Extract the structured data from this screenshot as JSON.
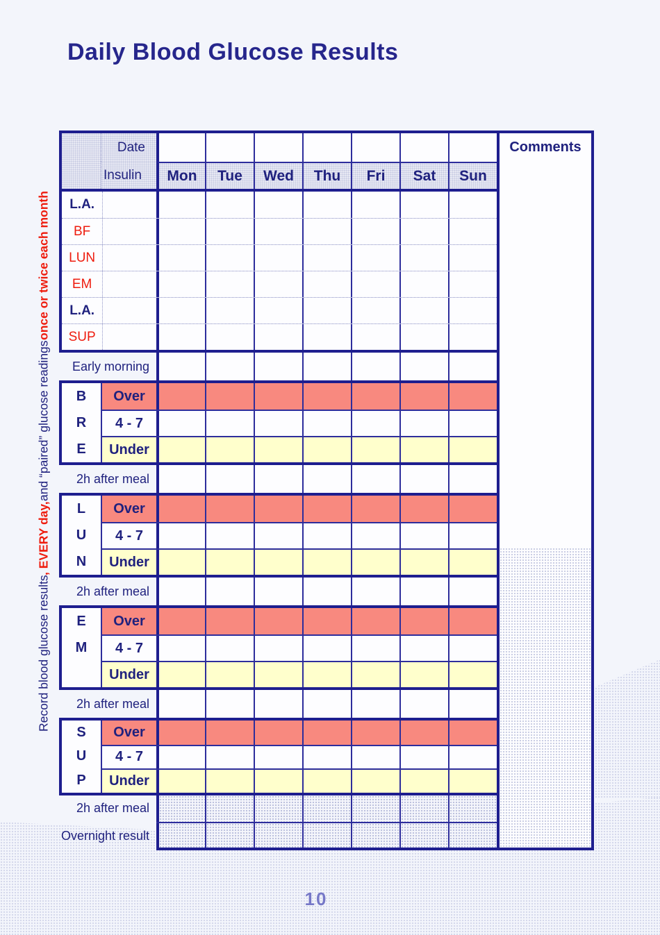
{
  "page": {
    "title": "Daily Blood Glucose Results",
    "page_number": "10",
    "side_note": {
      "seg1": "Record blood glucose results ",
      "seg2": ", EVERY day, ",
      "seg3": "and “paired” glucose readings ",
      "seg4": "once or twice each month"
    }
  },
  "table": {
    "header": {
      "date_label": "Date",
      "insulin_label": "Insulin",
      "days": [
        "Mon",
        "Tue",
        "Wed",
        "Thu",
        "Fri",
        "Sat",
        "Sun"
      ],
      "comments_label": "Comments"
    },
    "insulin_rows": [
      {
        "label": "L.A.",
        "color": "navy"
      },
      {
        "label": "BF",
        "color": "red"
      },
      {
        "label": "LUN",
        "color": "red"
      },
      {
        "label": "EM",
        "color": "red"
      },
      {
        "label": "L.A.",
        "color": "navy"
      },
      {
        "label": "SUP",
        "color": "red"
      }
    ],
    "early_label": "Early morning",
    "sections": [
      {
        "letters": [
          "B",
          "R",
          "E"
        ],
        "rows": [
          "Over",
          "4 - 7",
          "Under"
        ],
        "after_label": "2h after meal"
      },
      {
        "letters": [
          "L",
          "U",
          "N"
        ],
        "rows": [
          "Over",
          "4 - 7",
          "Under"
        ],
        "after_label": "2h after meal"
      },
      {
        "letters": [
          "E",
          "M",
          ""
        ],
        "rows": [
          "Over",
          "4 - 7",
          "Under"
        ],
        "after_label": "2h after meal"
      },
      {
        "letters": [
          "S",
          "U",
          "P"
        ],
        "rows": [
          "Over",
          "4 - 7",
          "Under"
        ],
        "after_label": "2h after meal"
      }
    ],
    "overnight_label": "Overnight result"
  },
  "colors": {
    "border_navy": "#1e1e8f",
    "text_navy": "#1f217e",
    "red": "#ee1c0e",
    "over_salmon": "#f8897f",
    "under_yellow": "#ffffcc",
    "header_gray": "#e7e8f3",
    "page_bg": "#f3f5fb",
    "page_number": "#7678c8"
  }
}
